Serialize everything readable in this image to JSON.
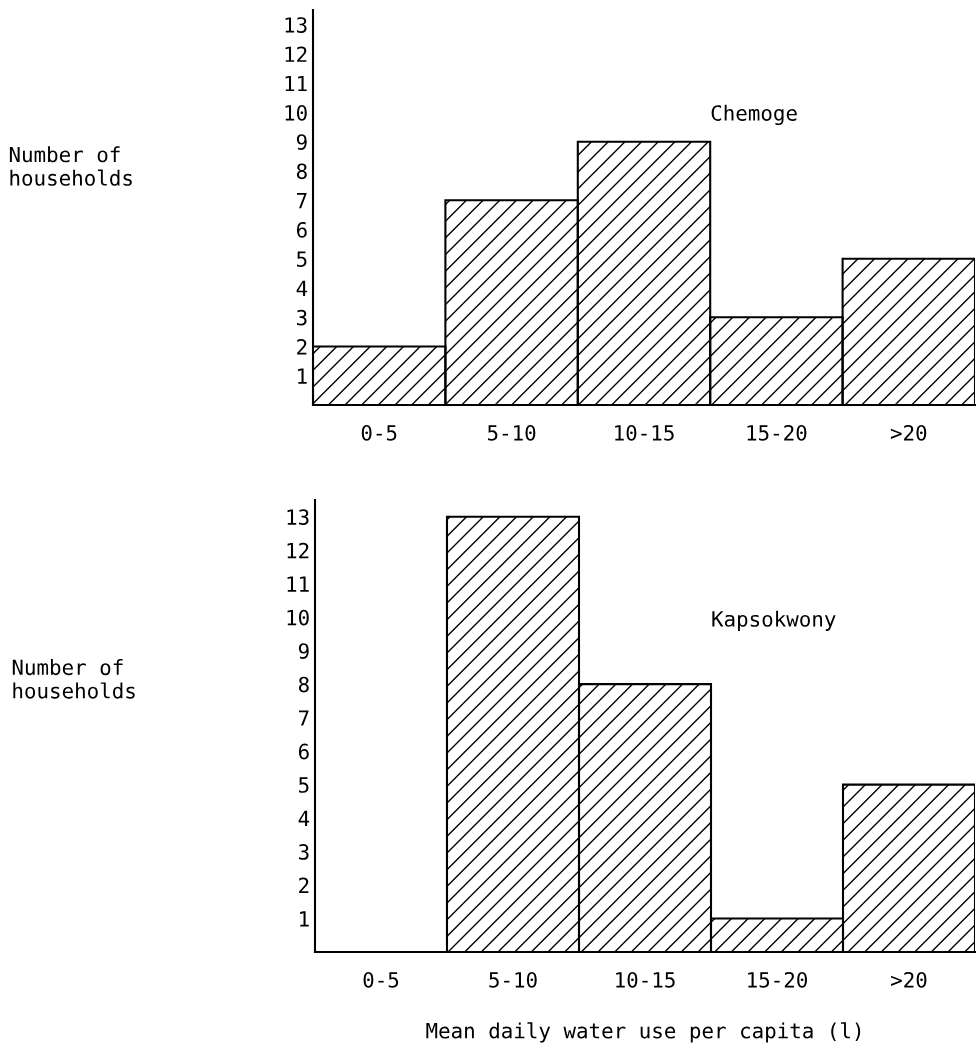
{
  "chart_data": [
    {
      "type": "bar",
      "categories": [
        "0-5",
        "5-10",
        "10-15",
        "15-20",
        ">20"
      ],
      "values": [
        2,
        7,
        9,
        3,
        5
      ],
      "color": "#000000",
      "ylabel": "Number of\nhouseholds",
      "ylim": [
        0,
        13.5
      ],
      "yticks": [
        1,
        2,
        3,
        4,
        5,
        6,
        7,
        8,
        9,
        10,
        11,
        12,
        13
      ],
      "annotations": [
        "Chemoge"
      ],
      "grid": false
    },
    {
      "type": "bar",
      "categories": [
        "0-5",
        "5-10",
        "10-15",
        "15-20",
        ">20"
      ],
      "values": [
        0,
        13,
        8,
        1,
        5
      ],
      "color": "#000000",
      "ylabel": "Number of\nhouseholds",
      "xlabel": "Mean daily water use per capita (l)",
      "ylim": [
        0,
        13.5
      ],
      "yticks": [
        1,
        2,
        3,
        4,
        5,
        6,
        7,
        8,
        9,
        10,
        11,
        12,
        13
      ],
      "annotations": [
        "Kapsokwony"
      ],
      "grid": false
    }
  ]
}
